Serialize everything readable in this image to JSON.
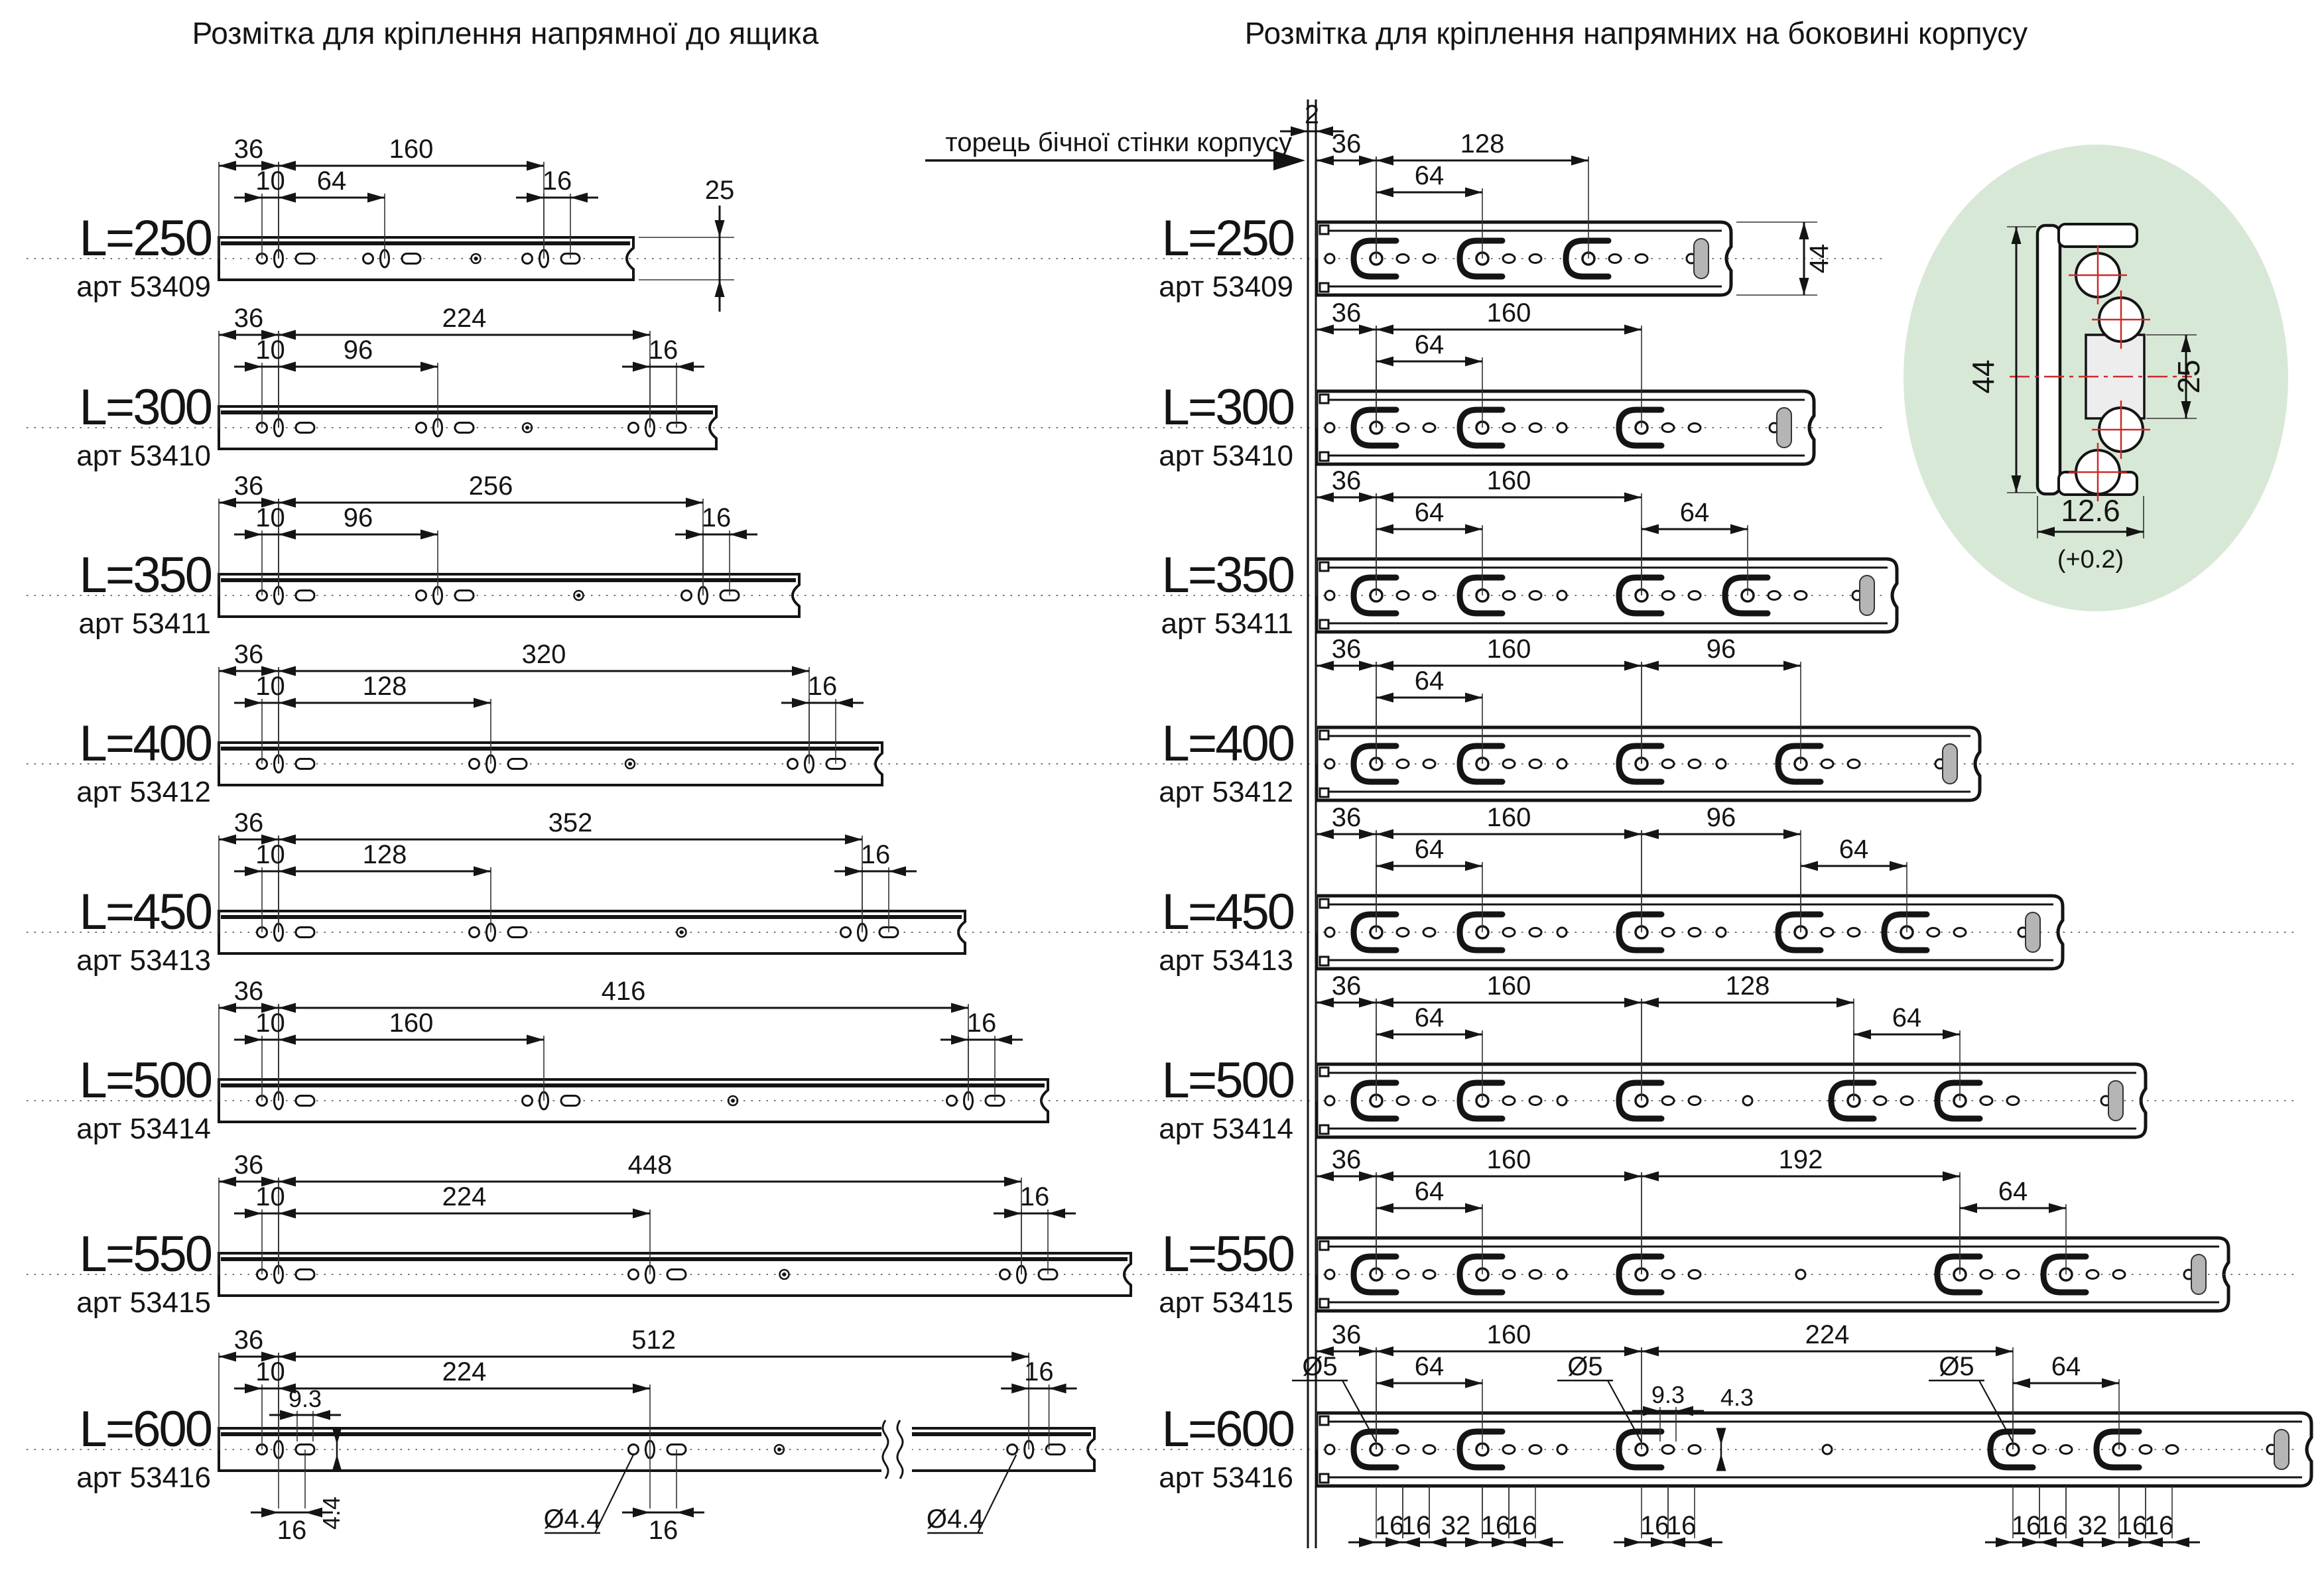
{
  "titles": {
    "left": "Розмітка для кріплення напрямної до ящика",
    "right": "Розмітка для кріплення напрямних на боковині корпусу"
  },
  "wall": {
    "label": "торець бічної стінки корпусу",
    "thickness_dim": "2"
  },
  "detail": {
    "height_dim": "44",
    "inner_dim": "25",
    "width_dim": "12.6",
    "tolerance": "(+0.2)"
  },
  "colors": {
    "line": "#141414",
    "accent_red": "#cc2a2a",
    "detail_bg": "#d8e8d6",
    "cap_gray": "#b5b5b5"
  },
  "left_column": {
    "rows": [
      {
        "label": "L=250",
        "art": "арт 53409",
        "length_mm": 250,
        "mounts": [
          36,
          100,
          196
        ],
        "top_dims": [
          [
            "36",
            0,
            36
          ],
          [
            "160",
            36,
            196
          ]
        ],
        "mid_dims": [
          [
            "10",
            26,
            36
          ],
          [
            "64",
            36,
            100
          ],
          [
            "16",
            196,
            212
          ]
        ],
        "side_dim": "25"
      },
      {
        "label": "L=300",
        "art": "арт 53410",
        "length_mm": 300,
        "mounts": [
          36,
          132,
          260
        ],
        "top_dims": [
          [
            "36",
            0,
            36
          ],
          [
            "224",
            36,
            260
          ]
        ],
        "mid_dims": [
          [
            "10",
            26,
            36
          ],
          [
            "96",
            36,
            132
          ],
          [
            "16",
            260,
            276
          ]
        ]
      },
      {
        "label": "L=350",
        "art": "арт 53411",
        "length_mm": 350,
        "mounts": [
          36,
          132,
          292
        ],
        "top_dims": [
          [
            "36",
            0,
            36
          ],
          [
            "256",
            36,
            292
          ]
        ],
        "mid_dims": [
          [
            "10",
            26,
            36
          ],
          [
            "96",
            36,
            132
          ],
          [
            "16",
            292,
            308
          ]
        ]
      },
      {
        "label": "L=400",
        "art": "арт 53412",
        "length_mm": 400,
        "mounts": [
          36,
          164,
          356
        ],
        "top_dims": [
          [
            "36",
            0,
            36
          ],
          [
            "320",
            36,
            356
          ]
        ],
        "mid_dims": [
          [
            "10",
            26,
            36
          ],
          [
            "128",
            36,
            164
          ],
          [
            "16",
            356,
            372
          ]
        ]
      },
      {
        "label": "L=450",
        "art": "арт 53413",
        "length_mm": 450,
        "mounts": [
          36,
          164,
          388
        ],
        "top_dims": [
          [
            "36",
            0,
            36
          ],
          [
            "352",
            36,
            388
          ]
        ],
        "mid_dims": [
          [
            "10",
            26,
            36
          ],
          [
            "128",
            36,
            164
          ],
          [
            "16",
            388,
            404
          ]
        ]
      },
      {
        "label": "L=500",
        "art": "арт 53414",
        "length_mm": 500,
        "mounts": [
          36,
          196,
          452
        ],
        "top_dims": [
          [
            "36",
            0,
            36
          ],
          [
            "416",
            36,
            452
          ]
        ],
        "mid_dims": [
          [
            "10",
            26,
            36
          ],
          [
            "160",
            36,
            196
          ],
          [
            "16",
            452,
            468
          ]
        ]
      },
      {
        "label": "L=550",
        "art": "арт 53415",
        "length_mm": 550,
        "mounts": [
          36,
          260,
          484
        ],
        "top_dims": [
          [
            "36",
            0,
            36
          ],
          [
            "448",
            36,
            484
          ]
        ],
        "mid_dims": [
          [
            "10",
            26,
            36
          ],
          [
            "224",
            36,
            260
          ],
          [
            "16",
            484,
            500
          ]
        ]
      },
      {
        "label": "L=600",
        "art": "арт 53416",
        "length_mm": 600,
        "mounts": [
          36,
          260,
          548
        ],
        "break": true,
        "top_dims": [
          [
            "36",
            0,
            36
          ],
          [
            "512",
            36,
            548
          ]
        ],
        "mid_dims": [
          [
            "10",
            26,
            36
          ],
          [
            "224",
            36,
            260
          ],
          [
            "16",
            548,
            564
          ]
        ],
        "bottom_dims": [
          [
            "16",
            36,
            52
          ],
          [
            "16",
            260,
            276
          ]
        ],
        "slot_dims": {
          "width": "9.3",
          "height": "4.4"
        },
        "callouts": [
          [
            "Ø4.4",
            250
          ],
          [
            "Ø4.4",
            538
          ]
        ]
      }
    ]
  },
  "right_column": {
    "rows": [
      {
        "label": "L=250",
        "art": "арт 53409",
        "length_mm": 250,
        "mounts": [
          36,
          100,
          164
        ],
        "top_dims": [
          [
            "36",
            0,
            36
          ],
          [
            "128",
            36,
            164
          ]
        ],
        "mid_dims": [
          [
            "64",
            36,
            100
          ]
        ],
        "side_dim": "44"
      },
      {
        "label": "L=300",
        "art": "арт 53410",
        "length_mm": 300,
        "mounts": [
          36,
          100,
          196
        ],
        "top_dims": [
          [
            "36",
            0,
            36
          ],
          [
            "160",
            36,
            196
          ]
        ],
        "mid_dims": [
          [
            "64",
            36,
            100
          ]
        ]
      },
      {
        "label": "L=350",
        "art": "арт 53411",
        "length_mm": 350,
        "mounts": [
          36,
          100,
          196,
          260
        ],
        "top_dims": [
          [
            "36",
            0,
            36
          ],
          [
            "160",
            36,
            196
          ]
        ],
        "mid_dims": [
          [
            "64",
            36,
            100
          ],
          [
            "64",
            196,
            260
          ]
        ]
      },
      {
        "label": "L=400",
        "art": "арт 53412",
        "length_mm": 400,
        "mounts": [
          36,
          100,
          196,
          292
        ],
        "top_dims": [
          [
            "36",
            0,
            36
          ],
          [
            "160",
            36,
            196
          ],
          [
            "96",
            196,
            292
          ]
        ],
        "mid_dims": [
          [
            "64",
            36,
            100
          ]
        ]
      },
      {
        "label": "L=450",
        "art": "арт 53413",
        "length_mm": 450,
        "mounts": [
          36,
          100,
          196,
          292,
          356
        ],
        "top_dims": [
          [
            "36",
            0,
            36
          ],
          [
            "160",
            36,
            196
          ],
          [
            "96",
            196,
            292
          ]
        ],
        "mid_dims": [
          [
            "64",
            36,
            100
          ],
          [
            "64",
            292,
            356
          ]
        ]
      },
      {
        "label": "L=500",
        "art": "арт 53414",
        "length_mm": 500,
        "mounts": [
          36,
          100,
          196,
          324,
          388
        ],
        "top_dims": [
          [
            "36",
            0,
            36
          ],
          [
            "160",
            36,
            196
          ],
          [
            "128",
            196,
            324
          ]
        ],
        "mid_dims": [
          [
            "64",
            36,
            100
          ],
          [
            "64",
            324,
            388
          ]
        ]
      },
      {
        "label": "L=550",
        "art": "арт 53415",
        "length_mm": 550,
        "mounts": [
          36,
          100,
          196,
          388,
          452
        ],
        "top_dims": [
          [
            "36",
            0,
            36
          ],
          [
            "160",
            36,
            196
          ],
          [
            "192",
            196,
            388
          ]
        ],
        "mid_dims": [
          [
            "64",
            36,
            100
          ],
          [
            "64",
            388,
            452
          ]
        ]
      },
      {
        "label": "L=600",
        "art": "арт 53416",
        "length_mm": 600,
        "mounts": [
          36,
          100,
          196,
          420,
          484
        ],
        "top_dims": [
          [
            "36",
            0,
            36
          ],
          [
            "160",
            36,
            196
          ],
          [
            "224",
            196,
            420
          ]
        ],
        "mid_dims": [
          [
            "64",
            36,
            100
          ],
          [
            "64",
            420,
            484
          ]
        ],
        "bottom_dims": [
          [
            "16",
            36,
            52
          ],
          [
            "16",
            52,
            68
          ],
          [
            "32",
            68,
            100
          ],
          [
            "16",
            100,
            116
          ],
          [
            "16",
            116,
            132
          ],
          [
            "16",
            196,
            212
          ],
          [
            "16",
            212,
            228
          ],
          [
            "16",
            420,
            436
          ],
          [
            "16",
            436,
            452
          ],
          [
            "32",
            452,
            484
          ],
          [
            "16",
            484,
            500
          ],
          [
            "16",
            500,
            516
          ]
        ],
        "slot_dims": {
          "width": "9.3",
          "height": "4.3"
        },
        "callouts": [
          [
            "Ø5",
            36
          ],
          [
            "Ø5",
            196
          ],
          [
            "Ø5",
            420
          ]
        ]
      }
    ]
  }
}
